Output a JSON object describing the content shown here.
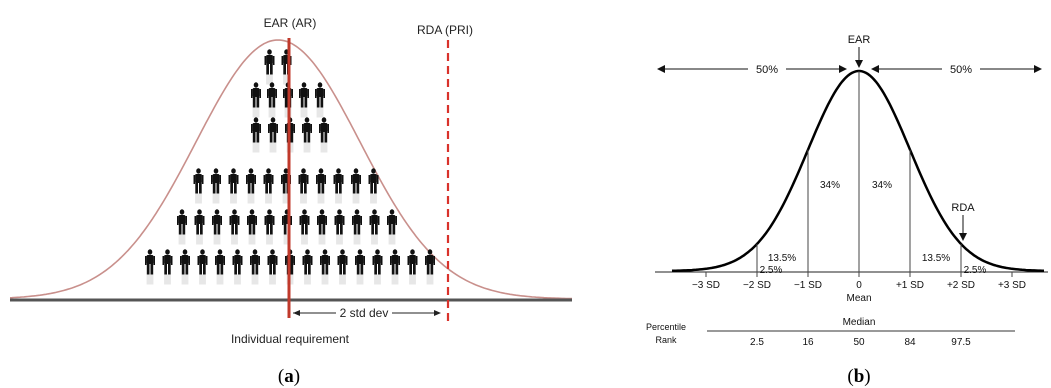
{
  "panel_a": {
    "ear_label": "EAR (AR)",
    "rda_label": "RDA (PRI)",
    "std_label": "2 std dev",
    "x_label": "Individual requirement",
    "caption_open": "(",
    "caption_letter": "a",
    "caption_close": ")",
    "rows": [
      2,
      5,
      5,
      11,
      13,
      17
    ],
    "colors": {
      "curve": "#c9908c",
      "ear_line": "#c0392b",
      "rda_line": "#d9322b",
      "axis": "#444444",
      "figure": "#111111"
    }
  },
  "panel_b": {
    "ear_label": "EAR",
    "rda_label": "RDA",
    "left_pct": "50%",
    "right_pct": "50%",
    "region_labels": [
      "2.5%",
      "13.5%",
      "34%",
      "34%",
      "13.5%",
      "2.5%"
    ],
    "sd_ticks": [
      "−3 SD",
      "−2 SD",
      "−1 SD",
      "0",
      "+1 SD",
      "+2 SD",
      "+3 SD"
    ],
    "mean_label": "Mean",
    "median_label": "Median",
    "percentile_label_1": "Percentile",
    "percentile_label_2": "Rank",
    "percentile_values": [
      "2.5",
      "16",
      "50",
      "84",
      "97.5"
    ],
    "caption_open": "(",
    "caption_letter": "b",
    "caption_close": ")"
  }
}
